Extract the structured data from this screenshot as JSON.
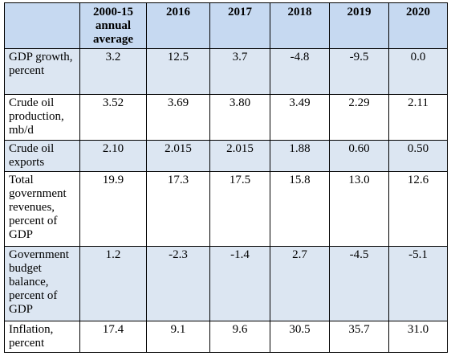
{
  "table": {
    "headers": [
      "",
      "2000-15 annual average",
      "2016",
      "2017",
      "2018",
      "2019",
      "2020"
    ],
    "rows": [
      {
        "label": "GDP growth, percent",
        "values": [
          "3.2",
          "12.5",
          "3.7",
          "-4.8",
          "-9.5",
          "0.0"
        ]
      },
      {
        "label": "Crude oil production, mb/d",
        "values": [
          "3.52",
          "3.69",
          "3.80",
          "3.49",
          "2.29",
          "2.11"
        ]
      },
      {
        "label": "Crude oil exports",
        "values": [
          "2.10",
          "2.015",
          "2.015",
          "1.88",
          "0.60",
          "0.50"
        ]
      },
      {
        "label": "Total government revenues, percent of GDP",
        "values": [
          "19.9",
          "17.3",
          "17.5",
          "15.8",
          "13.0",
          "12.6"
        ]
      },
      {
        "label": "Government budget balance, percent of GDP",
        "values": [
          "1.2",
          "-2.3",
          "-1.4",
          "2.7",
          "-4.5",
          "-5.1"
        ]
      },
      {
        "label": "Inflation, percent",
        "values": [
          "17.4",
          "9.1",
          "9.6",
          "30.5",
          "35.7",
          "31.0"
        ]
      }
    ]
  },
  "colors": {
    "header_bg": "#c6d9f1",
    "shade_bg": "#dce6f2",
    "plain_bg": "#ffffff",
    "border": "#000000"
  }
}
